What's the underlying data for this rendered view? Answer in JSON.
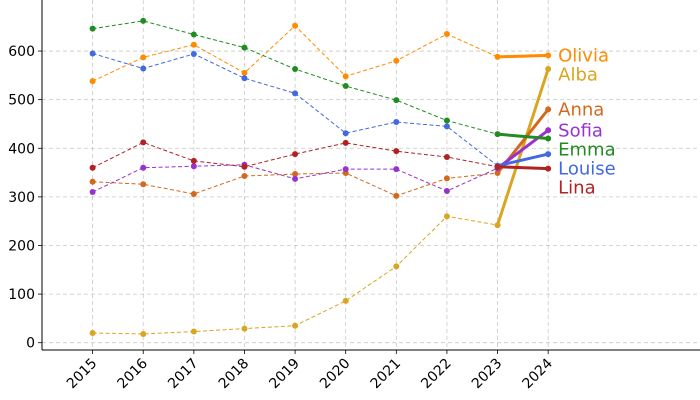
{
  "chart_data": {
    "type": "line",
    "title": "",
    "xlabel": "",
    "ylabel": "",
    "x": [
      "2015",
      "2016",
      "2017",
      "2018",
      "2019",
      "2020",
      "2021",
      "2022",
      "2023",
      "2024"
    ],
    "ylim": [
      -15,
      705
    ],
    "yticks": [
      0,
      100,
      200,
      300,
      400,
      500,
      600
    ],
    "grid": true,
    "legend": "none",
    "series": [
      {
        "name": "Olivia",
        "color": "#ff8c00",
        "values": [
          538,
          587,
          613,
          555,
          652,
          548,
          580,
          635,
          588,
          591
        ]
      },
      {
        "name": "Alba",
        "color": "#daa520",
        "values": [
          20,
          18,
          23,
          29,
          35,
          86,
          157,
          260,
          242,
          563
        ]
      },
      {
        "name": "Anna",
        "color": "#d2691e",
        "values": [
          331,
          326,
          306,
          343,
          347,
          349,
          302,
          338,
          349,
          480
        ]
      },
      {
        "name": "Sofia",
        "color": "#9932cc",
        "values": [
          310,
          360,
          363,
          366,
          337,
          357,
          357,
          312,
          359,
          437
        ]
      },
      {
        "name": "Emma",
        "color": "#228b22",
        "values": [
          646,
          662,
          634,
          607,
          563,
          528,
          499,
          457,
          429,
          420
        ]
      },
      {
        "name": "Louise",
        "color": "#4169e1",
        "values": [
          595,
          564,
          594,
          544,
          513,
          431,
          454,
          445,
          364,
          388
        ]
      },
      {
        "name": "Lina",
        "color": "#b22222",
        "values": [
          360,
          412,
          374,
          362,
          388,
          411,
          394,
          382,
          362,
          358
        ]
      }
    ]
  }
}
